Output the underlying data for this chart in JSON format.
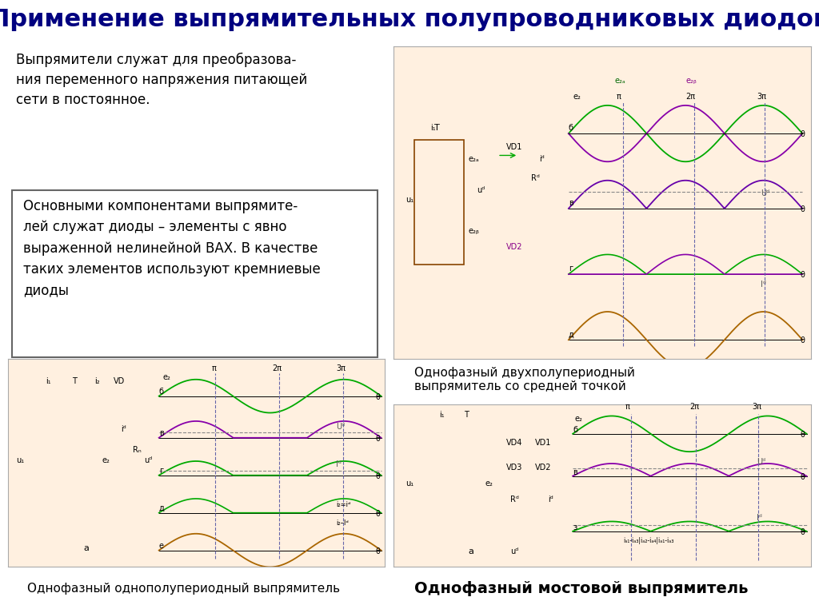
{
  "title": "Применение выпрямительных полупроводниковых диодов",
  "title_bg": "#FFFF00",
  "title_color": "#000080",
  "title_fontsize": 22,
  "bg_color": "#FFFFFF",
  "text_block1": "Выпрямители служат для преобразова-\nния переменного напряжения питающей\nсети в постоянное.",
  "text_block2": "Основными компонентами выпрямите-\nлей служат диоды – элементы с явно\nвыраженной нелинейной ВАХ. В качестве\nтаких элементов используют кремниевые\nдиоды",
  "caption_top_right": "Однофазный двухполупериодный\nвыпрямитель со средней точкой",
  "caption_bottom_left": "Однофазный однополупериодный выпрямитель",
  "caption_bottom_right": "Однофазный мостовой выпрямитель",
  "panel_bg": "#FFF0E0",
  "panel_border": "#8B8B00",
  "caption_bg": "#FFB0D0",
  "caption_fontsize_small": 11,
  "caption_fontsize_large": 14
}
